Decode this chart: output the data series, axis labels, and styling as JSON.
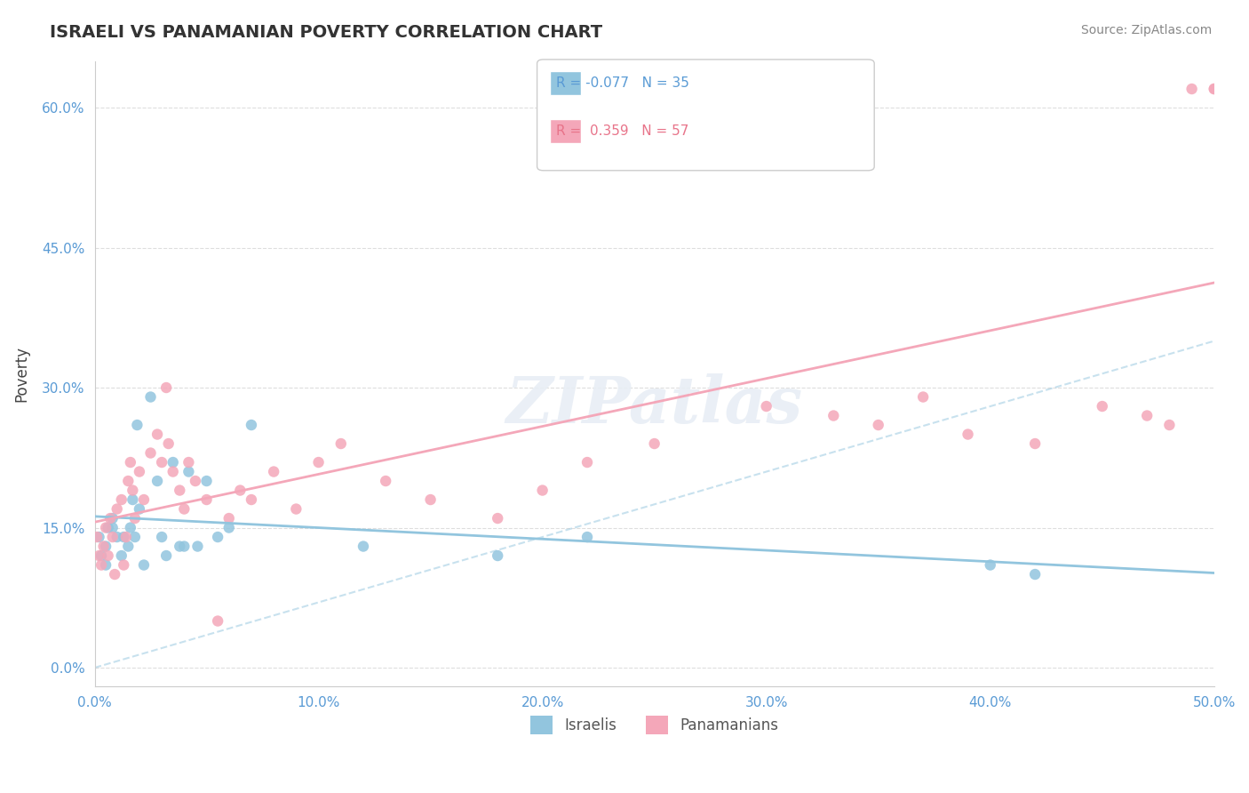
{
  "title": "ISRAELI VS PANAMANIAN POVERTY CORRELATION CHART",
  "source_text": "Source: ZipAtlas.com",
  "xlabel": "",
  "ylabel": "Poverty",
  "xlim": [
    0.0,
    0.5
  ],
  "ylim": [
    -0.02,
    0.65
  ],
  "yticks": [
    0.0,
    0.15,
    0.3,
    0.45,
    0.6
  ],
  "ytick_labels": [
    "0.0%",
    "15.0%",
    "30.0%",
    "45.0%",
    "60.0%"
  ],
  "xticks": [
    0.0,
    0.1,
    0.2,
    0.3,
    0.4,
    0.5
  ],
  "xtick_labels": [
    "0.0%",
    "10.0%",
    "20.0%",
    "30.0%",
    "40.0%",
    "50.0%"
  ],
  "israeli_color": "#92c5de",
  "panamanian_color": "#f4a7b9",
  "israeli_R": -0.077,
  "israeli_N": 35,
  "panamanian_R": 0.359,
  "panamanian_N": 57,
  "watermark": "ZIPatlas",
  "background_color": "#ffffff",
  "grid_color": "#d0d0d0",
  "israeli_scatter_x": [
    0.002,
    0.003,
    0.005,
    0.005,
    0.006,
    0.008,
    0.008,
    0.01,
    0.012,
    0.013,
    0.015,
    0.016,
    0.017,
    0.018,
    0.019,
    0.02,
    0.022,
    0.025,
    0.028,
    0.03,
    0.032,
    0.035,
    0.038,
    0.04,
    0.042,
    0.046,
    0.05,
    0.055,
    0.06,
    0.07,
    0.12,
    0.18,
    0.22,
    0.4,
    0.42
  ],
  "israeli_scatter_y": [
    0.14,
    0.12,
    0.13,
    0.11,
    0.15,
    0.15,
    0.16,
    0.14,
    0.12,
    0.14,
    0.13,
    0.15,
    0.18,
    0.14,
    0.26,
    0.17,
    0.11,
    0.29,
    0.2,
    0.14,
    0.12,
    0.22,
    0.13,
    0.13,
    0.21,
    0.13,
    0.2,
    0.14,
    0.15,
    0.26,
    0.13,
    0.12,
    0.14,
    0.11,
    0.1
  ],
  "panamanian_scatter_x": [
    0.001,
    0.002,
    0.003,
    0.004,
    0.005,
    0.006,
    0.007,
    0.008,
    0.009,
    0.01,
    0.012,
    0.013,
    0.014,
    0.015,
    0.016,
    0.017,
    0.018,
    0.02,
    0.022,
    0.025,
    0.028,
    0.03,
    0.032,
    0.033,
    0.035,
    0.038,
    0.04,
    0.042,
    0.045,
    0.05,
    0.055,
    0.06,
    0.065,
    0.07,
    0.08,
    0.09,
    0.1,
    0.11,
    0.13,
    0.15,
    0.18,
    0.2,
    0.22,
    0.25,
    0.27,
    0.3,
    0.33,
    0.35,
    0.37,
    0.39,
    0.42,
    0.45,
    0.47,
    0.48,
    0.49,
    0.5,
    0.5
  ],
  "panamanian_scatter_y": [
    0.14,
    0.12,
    0.11,
    0.13,
    0.15,
    0.12,
    0.16,
    0.14,
    0.1,
    0.17,
    0.18,
    0.11,
    0.14,
    0.2,
    0.22,
    0.19,
    0.16,
    0.21,
    0.18,
    0.23,
    0.25,
    0.22,
    0.3,
    0.24,
    0.21,
    0.19,
    0.17,
    0.22,
    0.2,
    0.18,
    0.05,
    0.16,
    0.19,
    0.18,
    0.21,
    0.17,
    0.22,
    0.24,
    0.2,
    0.18,
    0.16,
    0.19,
    0.22,
    0.24,
    0.62,
    0.28,
    0.27,
    0.26,
    0.29,
    0.25,
    0.24,
    0.28,
    0.27,
    0.26,
    0.62,
    0.62,
    0.62
  ]
}
